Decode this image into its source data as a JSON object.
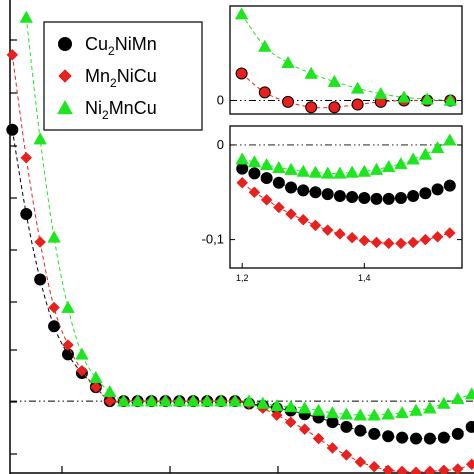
{
  "chart_data": [
    {
      "type": "scatter",
      "role": "main",
      "title": "",
      "xlabel": "",
      "ylabel": "",
      "xlim": [
        0,
        1
      ],
      "ylim": [
        -0.16,
        0.9
      ],
      "reference_line": 0,
      "legend": {
        "placement": "top-left",
        "entries": [
          {
            "base": "Cu",
            "sub": "2",
            "rest": "NiMn",
            "marker": "circle",
            "color": "#000000"
          },
          {
            "base": "Mn",
            "sub": "2",
            "rest": "NiCu",
            "marker": "diamond",
            "color": "#e8211e"
          },
          {
            "base": "Ni",
            "sub": "2",
            "rest": "MnCu",
            "marker": "triangle",
            "color": "#1ee61e"
          }
        ]
      },
      "series": [
        {
          "marker": "circle",
          "color": "#000000",
          "x": [
            0.005,
            0.035,
            0.065,
            0.095,
            0.125,
            0.155,
            0.185,
            0.215,
            0.245,
            0.275,
            0.305,
            0.335,
            0.365,
            0.395,
            0.425,
            0.455,
            0.485,
            0.515,
            0.545,
            0.575,
            0.605,
            0.635,
            0.665,
            0.695,
            0.725,
            0.755,
            0.785,
            0.815,
            0.845,
            0.875,
            0.905,
            0.935,
            0.965,
            0.995
          ],
          "y": [
            0.58,
            0.4,
            0.26,
            0.16,
            0.1,
            0.06,
            0.03,
            0.0,
            0.0,
            0.0,
            0.0,
            0.0,
            0.0,
            0.0,
            0.0,
            0.0,
            0.0,
            -0.005,
            -0.01,
            -0.015,
            -0.02,
            -0.028,
            -0.035,
            -0.045,
            -0.055,
            -0.063,
            -0.07,
            -0.075,
            -0.078,
            -0.08,
            -0.08,
            -0.078,
            -0.07,
            -0.055
          ]
        },
        {
          "marker": "diamond",
          "color": "#e8211e",
          "x": [
            0.005,
            0.035,
            0.065,
            0.095,
            0.125,
            0.155,
            0.185,
            0.215,
            0.245,
            0.275,
            0.305,
            0.335,
            0.365,
            0.395,
            0.425,
            0.455,
            0.485,
            0.515,
            0.545,
            0.575,
            0.605,
            0.635,
            0.665,
            0.695,
            0.725,
            0.755,
            0.785,
            0.815,
            0.845,
            0.875,
            0.905,
            0.935,
            0.965,
            0.995
          ],
          "y": [
            0.74,
            0.52,
            0.34,
            0.2,
            0.12,
            0.065,
            0.03,
            0.0,
            0.0,
            0.0,
            0.0,
            0.0,
            0.0,
            0.0,
            0.0,
            0.0,
            0.0,
            -0.005,
            -0.015,
            -0.03,
            -0.045,
            -0.06,
            -0.08,
            -0.1,
            -0.115,
            -0.13,
            -0.14,
            -0.148,
            -0.15,
            -0.152,
            -0.15,
            -0.148,
            -0.145,
            -0.135
          ]
        },
        {
          "marker": "triangle",
          "color": "#1ee61e",
          "x": [
            0.035,
            0.065,
            0.095,
            0.125,
            0.155,
            0.185,
            0.215,
            0.245,
            0.275,
            0.305,
            0.335,
            0.365,
            0.395,
            0.425,
            0.455,
            0.485,
            0.515,
            0.545,
            0.575,
            0.605,
            0.635,
            0.665,
            0.695,
            0.725,
            0.755,
            0.785,
            0.815,
            0.845,
            0.875,
            0.905,
            0.935,
            0.965,
            0.995
          ],
          "y": [
            0.82,
            0.56,
            0.35,
            0.2,
            0.1,
            0.05,
            0.02,
            0.0,
            0.0,
            0.0,
            0.0,
            0.0,
            0.0,
            0.0,
            0.0,
            0.0,
            0.0,
            -0.005,
            -0.01,
            -0.012,
            -0.015,
            -0.02,
            -0.025,
            -0.028,
            -0.03,
            -0.03,
            -0.028,
            -0.025,
            -0.02,
            -0.015,
            -0.005,
            0.005,
            0.015
          ]
        }
      ]
    },
    {
      "type": "scatter",
      "role": "inset-top",
      "xlim": [
        0,
        1
      ],
      "ylim": [
        -0.05,
        0.35
      ],
      "yticks": [
        {
          "value": 0,
          "label": "0"
        }
      ],
      "reference_line": 0,
      "series": [
        {
          "marker": "circle",
          "color": "#e8211e",
          "edgecolor": "#000000",
          "x": [
            0.05,
            0.15,
            0.25,
            0.35,
            0.45,
            0.55,
            0.65,
            0.75,
            0.85,
            0.95
          ],
          "y": [
            0.1,
            0.03,
            -0.005,
            -0.025,
            -0.025,
            -0.015,
            -0.005,
            0.0,
            0.0,
            0.0
          ]
        },
        {
          "marker": "triangle",
          "color": "#1ee61e",
          "x": [
            0.05,
            0.15,
            0.25,
            0.35,
            0.45,
            0.55,
            0.65,
            0.75,
            0.85,
            0.95
          ],
          "y": [
            0.32,
            0.2,
            0.14,
            0.1,
            0.07,
            0.045,
            0.025,
            0.012,
            0.005,
            0.0
          ]
        }
      ]
    },
    {
      "type": "scatter",
      "role": "inset-bottom",
      "xlim": [
        1.18,
        1.56
      ],
      "ylim": [
        -0.13,
        0.02
      ],
      "xticks": [
        {
          "value": 1.2,
          "label": "1,2"
        },
        {
          "value": 1.4,
          "label": "1,4"
        }
      ],
      "yticks": [
        {
          "value": 0,
          "label": "0"
        },
        {
          "value": -0.1,
          "label": "-0,1"
        }
      ],
      "reference_line": 0,
      "series": [
        {
          "marker": "circle",
          "color": "#000000",
          "x": [
            1.2,
            1.22,
            1.24,
            1.26,
            1.28,
            1.3,
            1.32,
            1.34,
            1.36,
            1.38,
            1.4,
            1.42,
            1.44,
            1.46,
            1.48,
            1.5,
            1.52,
            1.54
          ],
          "y": [
            -0.025,
            -0.03,
            -0.035,
            -0.04,
            -0.045,
            -0.048,
            -0.05,
            -0.052,
            -0.054,
            -0.055,
            -0.056,
            -0.057,
            -0.057,
            -0.056,
            -0.054,
            -0.051,
            -0.047,
            -0.043
          ]
        },
        {
          "marker": "diamond",
          "color": "#e8211e",
          "x": [
            1.2,
            1.22,
            1.24,
            1.26,
            1.28,
            1.3,
            1.32,
            1.34,
            1.36,
            1.38,
            1.4,
            1.42,
            1.44,
            1.46,
            1.48,
            1.5,
            1.52,
            1.54
          ],
          "y": [
            -0.04,
            -0.05,
            -0.058,
            -0.066,
            -0.073,
            -0.079,
            -0.085,
            -0.09,
            -0.094,
            -0.098,
            -0.101,
            -0.103,
            -0.104,
            -0.104,
            -0.103,
            -0.1,
            -0.097,
            -0.093
          ]
        },
        {
          "marker": "triangle",
          "color": "#1ee61e",
          "x": [
            1.2,
            1.22,
            1.24,
            1.26,
            1.28,
            1.3,
            1.32,
            1.34,
            1.36,
            1.38,
            1.4,
            1.42,
            1.44,
            1.46,
            1.48,
            1.5,
            1.52,
            1.54
          ],
          "y": [
            -0.015,
            -0.018,
            -0.021,
            -0.024,
            -0.026,
            -0.028,
            -0.029,
            -0.03,
            -0.03,
            -0.029,
            -0.028,
            -0.026,
            -0.023,
            -0.02,
            -0.015,
            -0.01,
            -0.003,
            0.005
          ]
        }
      ]
    }
  ]
}
